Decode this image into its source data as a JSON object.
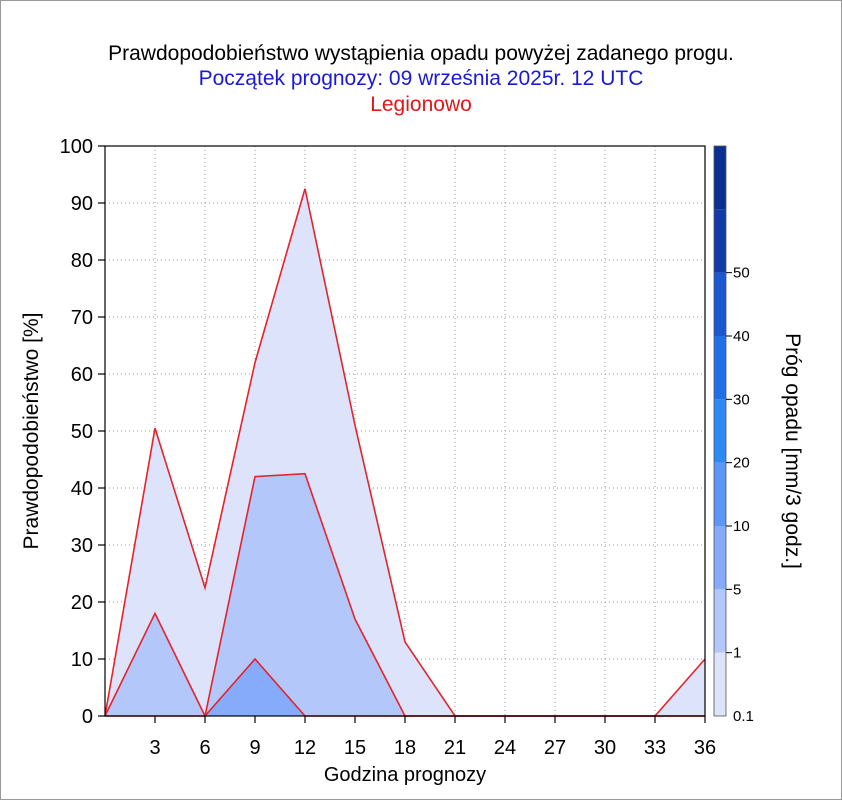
{
  "chart_data": {
    "type": "area",
    "title": "Prawdopodobieństwo wystąpienia opadu powyżej zadanego progu.",
    "subtitle": "Początek prognozy: 09 września 2025r. 12 UTC",
    "location": "Legionowo",
    "xlabel": "Godzina prognozy",
    "ylabel": "Prawdopodobieństwo [%]",
    "colorbar_label": "Próg opadu [mm/3 godz.]",
    "xlim": [
      0,
      36
    ],
    "ylim": [
      0,
      100
    ],
    "x_ticks": [
      "3",
      "6",
      "9",
      "12",
      "15",
      "18",
      "21",
      "24",
      "27",
      "30",
      "33",
      "36"
    ],
    "y_ticks": [
      "0",
      "10",
      "20",
      "30",
      "40",
      "50",
      "60",
      "70",
      "80",
      "90",
      "100"
    ],
    "x": [
      0,
      3,
      6,
      9,
      12,
      15,
      18,
      21,
      24,
      27,
      30,
      33,
      36
    ],
    "series": [
      {
        "threshold": "0.1",
        "color": "#dde3fb",
        "values": [
          0,
          50.5,
          22.5,
          62,
          92.5,
          51,
          13,
          0,
          0,
          0,
          0,
          0,
          10
        ]
      },
      {
        "threshold": "1",
        "color": "#b3c7fa",
        "values": [
          0,
          18,
          0,
          42,
          42.5,
          17,
          0,
          0,
          0,
          0,
          0,
          0,
          0
        ]
      },
      {
        "threshold": "5",
        "color": "#86abfa",
        "values": [
          0,
          0,
          0,
          10,
          0,
          0,
          0,
          0,
          0,
          0,
          0,
          0,
          0
        ]
      }
    ],
    "colorbar": {
      "levels": [
        0.1,
        1,
        5,
        10,
        20,
        30,
        40,
        50
      ],
      "tick_labels": [
        "0.1",
        "1",
        "5",
        "10",
        "20",
        "30",
        "40",
        "50"
      ],
      "colors": [
        "#dde3fb",
        "#b3c7fa",
        "#86abfa",
        "#5c97f7",
        "#2b8af5",
        "#1f70e8",
        "#1a57d0",
        "#0f3aa8",
        "#0a2f90"
      ]
    },
    "line_color": "#e3242b",
    "grid": "dotted"
  }
}
